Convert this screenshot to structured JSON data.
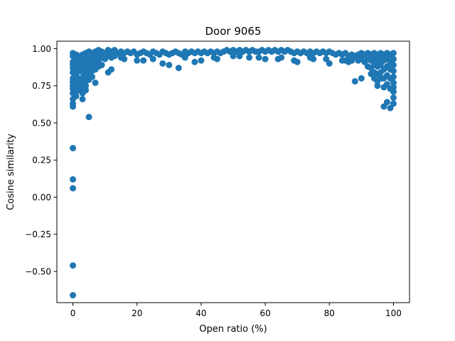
{
  "chart_data": {
    "type": "scatter",
    "title": "Door 9065",
    "xlabel": "Open ratio (%)",
    "ylabel": "Cosine similarity",
    "xlim": [
      -5,
      105
    ],
    "ylim": [
      -0.71,
      1.05
    ],
    "xticks": [
      0,
      20,
      40,
      60,
      80,
      100
    ],
    "yticks": [
      -0.5,
      -0.25,
      0.0,
      0.25,
      0.5,
      0.75,
      1.0
    ],
    "xtick_labels": [
      "0",
      "20",
      "40",
      "60",
      "80",
      "100"
    ],
    "ytick_labels": [
      "−0.50",
      "−0.25",
      "0.00",
      "0.25",
      "0.50",
      "0.75",
      "1.00"
    ],
    "grid": false,
    "marker_color": "#1f77b4",
    "series": [
      {
        "name": "",
        "x": [
          0,
          0,
          0,
          0,
          0,
          0,
          0,
          0,
          0,
          0,
          0,
          0,
          0,
          0,
          0,
          0,
          0,
          0,
          0,
          0,
          1,
          1,
          1,
          1,
          1,
          1,
          1,
          1,
          1,
          1,
          2,
          2,
          2,
          2,
          2,
          2,
          2,
          2,
          2,
          2,
          3,
          3,
          3,
          3,
          3,
          3,
          3,
          3,
          3,
          3,
          3,
          4,
          4,
          4,
          4,
          4,
          4,
          4,
          4,
          4,
          4,
          5,
          5,
          5,
          5,
          5,
          5,
          5,
          5,
          5,
          6,
          6,
          6,
          6,
          6,
          6,
          6,
          7,
          7,
          7,
          7,
          7,
          8,
          8,
          8,
          9,
          9,
          9,
          10,
          10,
          11,
          11,
          11,
          12,
          12,
          13,
          13,
          14,
          15,
          15,
          16,
          17,
          18,
          19,
          20,
          21,
          22,
          23,
          24,
          25,
          26,
          27,
          28,
          29,
          30,
          31,
          32,
          33,
          34,
          35,
          36,
          37,
          38,
          39,
          40,
          41,
          42,
          43,
          44,
          45,
          46,
          47,
          48,
          49,
          50,
          51,
          52,
          53,
          54,
          55,
          56,
          57,
          58,
          59,
          60,
          61,
          62,
          63,
          64,
          65,
          66,
          67,
          68,
          69,
          70,
          71,
          72,
          73,
          74,
          75,
          76,
          77,
          78,
          79,
          80,
          81,
          82,
          83,
          84,
          85,
          86,
          86,
          87,
          87,
          88,
          88,
          89,
          89,
          90,
          90,
          91,
          91,
          92,
          92,
          92,
          93,
          93,
          93,
          93,
          94,
          94,
          94,
          94,
          94,
          95,
          95,
          95,
          95,
          95,
          96,
          96,
          96,
          96,
          96,
          97,
          97,
          97,
          97,
          97,
          97,
          98,
          98,
          98,
          98,
          98,
          98,
          99,
          99,
          99,
          99,
          99,
          99,
          100,
          100,
          100,
          100,
          100,
          100,
          100,
          100,
          100,
          100,
          20,
          25,
          30,
          35,
          40,
          45,
          50,
          55,
          60,
          65,
          70,
          75,
          80,
          85,
          3,
          4,
          5,
          8,
          12,
          16,
          22,
          28,
          33,
          38,
          44,
          52,
          58,
          64,
          69,
          74,
          79,
          84,
          90,
          95
        ],
        "y": [
          0.97,
          0.91,
          0.87,
          0.8,
          0.77,
          0.73,
          0.7,
          0.66,
          0.63,
          0.61,
          0.33,
          0.12,
          0.06,
          -0.46,
          -0.66,
          0.95,
          0.89,
          0.84,
          0.78,
          0.75,
          0.93,
          0.88,
          0.83,
          0.79,
          0.75,
          0.71,
          0.68,
          0.96,
          0.9,
          0.86,
          0.94,
          0.89,
          0.85,
          0.8,
          0.77,
          0.74,
          0.72,
          0.95,
          0.91,
          0.87,
          0.96,
          0.92,
          0.88,
          0.84,
          0.8,
          0.76,
          0.73,
          0.7,
          0.66,
          0.94,
          0.9,
          0.97,
          0.93,
          0.89,
          0.85,
          0.82,
          0.78,
          0.75,
          0.72,
          0.95,
          0.91,
          0.98,
          0.94,
          0.9,
          0.86,
          0.83,
          0.8,
          0.54,
          0.96,
          0.92,
          0.97,
          0.93,
          0.89,
          0.85,
          0.81,
          0.95,
          0.91,
          0.98,
          0.94,
          0.9,
          0.86,
          0.77,
          0.99,
          0.95,
          0.91,
          0.98,
          0.94,
          0.89,
          0.97,
          0.93,
          0.99,
          0.95,
          0.84,
          0.98,
          0.94,
          0.99,
          0.95,
          0.97,
          0.98,
          0.94,
          0.97,
          0.98,
          0.97,
          0.98,
          0.96,
          0.97,
          0.98,
          0.97,
          0.96,
          0.98,
          0.97,
          0.96,
          0.98,
          0.97,
          0.96,
          0.97,
          0.98,
          0.97,
          0.96,
          0.98,
          0.97,
          0.98,
          0.97,
          0.98,
          0.97,
          0.98,
          0.97,
          0.98,
          0.97,
          0.98,
          0.97,
          0.98,
          0.99,
          0.98,
          0.99,
          0.98,
          0.99,
          0.98,
          0.99,
          0.98,
          0.99,
          0.98,
          0.98,
          0.99,
          0.98,
          0.99,
          0.98,
          0.99,
          0.98,
          0.99,
          0.98,
          0.99,
          0.98,
          0.97,
          0.98,
          0.97,
          0.98,
          0.97,
          0.98,
          0.97,
          0.98,
          0.97,
          0.98,
          0.97,
          0.98,
          0.97,
          0.96,
          0.97,
          0.96,
          0.97,
          0.95,
          0.91,
          0.96,
          0.92,
          0.95,
          0.78,
          0.96,
          0.92,
          0.97,
          0.93,
          0.96,
          0.91,
          0.97,
          0.93,
          0.88,
          0.96,
          0.92,
          0.87,
          0.83,
          0.97,
          0.93,
          0.89,
          0.84,
          0.8,
          0.96,
          0.92,
          0.88,
          0.83,
          0.78,
          0.97,
          0.93,
          0.89,
          0.84,
          0.8,
          0.96,
          0.92,
          0.86,
          0.8,
          0.74,
          0.61,
          0.97,
          0.93,
          0.88,
          0.82,
          0.76,
          0.64,
          0.96,
          0.91,
          0.86,
          0.8,
          0.73,
          0.6,
          0.97,
          0.93,
          0.89,
          0.85,
          0.81,
          0.77,
          0.74,
          0.71,
          0.67,
          0.63,
          0.92,
          0.93,
          0.89,
          0.94,
          0.92,
          0.93,
          0.95,
          0.94,
          0.93,
          0.94,
          0.91,
          0.93,
          0.9,
          0.92,
          0.85,
          0.82,
          0.79,
          0.88,
          0.86,
          0.93,
          0.92,
          0.9,
          0.87,
          0.91,
          0.94,
          0.95,
          0.94,
          0.93,
          0.92,
          0.94,
          0.93,
          0.92,
          0.8,
          0.75
        ]
      }
    ]
  }
}
